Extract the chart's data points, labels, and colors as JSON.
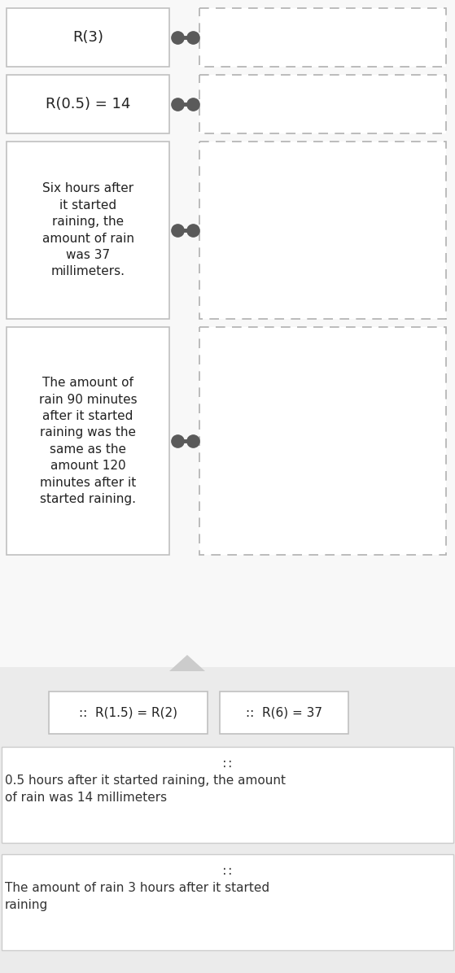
{
  "fig_w": 5.59,
  "fig_h": 11.96,
  "dpi": 100,
  "bg_top": "#f5f5f5",
  "bg_bottom": "#ebebeb",
  "white": "#ffffff",
  "card_border": "#c0c0c0",
  "dash_border": "#b0b0b0",
  "connector_color": "#5a5a5a",
  "text_color": "#222222",
  "text_color2": "#333333",
  "icon_color": "#444444",
  "triangle_color": "#cccccc",
  "card1_text": "R(3)",
  "card2_text": "R(0.5) = 14",
  "card3_text": "Six hours after\nit started\nraining, the\namount of rain\nwas 37\nmillimeters.",
  "card4_text": "The amount of\nrain 90 minutes\nafter it started\nraining was the\nsame as the\namount 120\nminutes after it\nstarted raining.",
  "chip1_text": "::  R(1.5) = R(2)",
  "chip2_text": "::  R(6) = 37",
  "box1_icon": "∷",
  "box1_text": "0.5 hours after it started raining, the amount\nof rain was 14 millimeters",
  "box2_icon": "∷",
  "box2_text": "The amount of rain 3 hours after it started\nraining"
}
